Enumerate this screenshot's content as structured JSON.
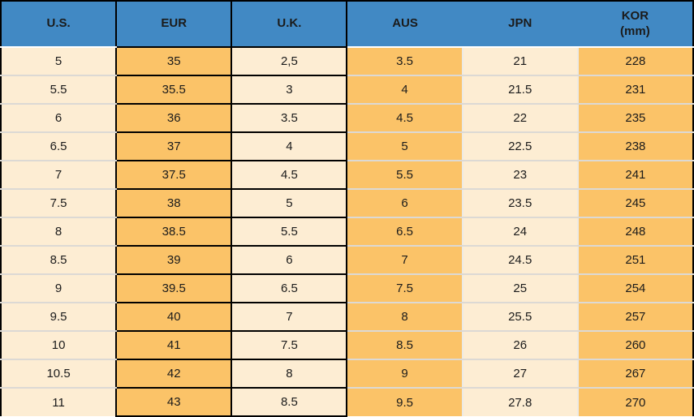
{
  "chart_data": {
    "type": "table",
    "columns": [
      {
        "key": "us",
        "label": "U.S.",
        "fill": "cream",
        "black_border": false
      },
      {
        "key": "eur",
        "label": "EUR",
        "fill": "orange",
        "black_border": true
      },
      {
        "key": "uk",
        "label": "U.K.",
        "fill": "cream",
        "black_border": true
      },
      {
        "key": "aus",
        "label": "AUS",
        "fill": "orange",
        "black_border": false
      },
      {
        "key": "jpn",
        "label": "JPN",
        "fill": "cream",
        "black_border": false
      },
      {
        "key": "kor",
        "label": "KOR",
        "label2": "(mm)",
        "fill": "orange",
        "black_border": false
      }
    ],
    "rows": [
      [
        "5",
        "35",
        "2,5",
        "3.5",
        "21",
        "228"
      ],
      [
        "5.5",
        "35.5",
        "3",
        "4",
        "21.5",
        "231"
      ],
      [
        "6",
        "36",
        "3.5",
        "4.5",
        "22",
        "235"
      ],
      [
        "6.5",
        "37",
        "4",
        "5",
        "22.5",
        "238"
      ],
      [
        "7",
        "37.5",
        "4.5",
        "5.5",
        "23",
        "241"
      ],
      [
        "7.5",
        "38",
        "5",
        "6",
        "23.5",
        "245"
      ],
      [
        "8",
        "38.5",
        "5.5",
        "6.5",
        "24",
        "248"
      ],
      [
        "8.5",
        "39",
        "6",
        "7",
        "24.5",
        "251"
      ],
      [
        "9",
        "39.5",
        "6.5",
        "7.5",
        "25",
        "254"
      ],
      [
        "9.5",
        "40",
        "7",
        "8",
        "25.5",
        "257"
      ],
      [
        "10",
        "41",
        "7.5",
        "8.5",
        "26",
        "260"
      ],
      [
        "10.5",
        "42",
        "8",
        "9",
        "27",
        "267"
      ],
      [
        "11",
        "43",
        "8.5",
        "9.5",
        "27.8",
        "270"
      ]
    ],
    "layout_hints": {
      "header_row": true,
      "grid": "light-gridlines",
      "emphasized_columns": [
        "EUR",
        "U.K."
      ]
    }
  },
  "colors": {
    "header_bg": "#4189C4",
    "orange": "#FBC368",
    "cream": "#FDEDD3",
    "gridline": "#DCD9D4",
    "sep_light": "#ECEAE5",
    "header_underline": "#FFFFFF",
    "border_black": "#000000",
    "text": "#1B1B1B"
  }
}
